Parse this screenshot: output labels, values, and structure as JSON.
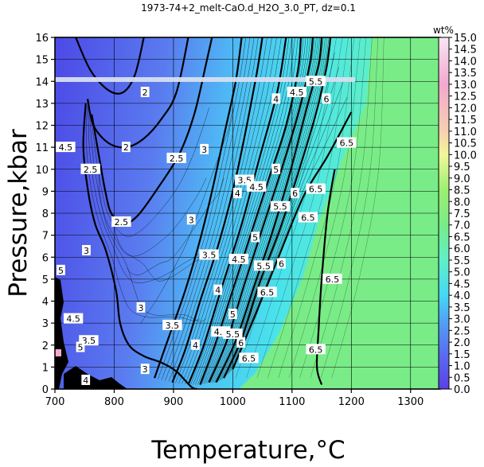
{
  "chart_data": {
    "type": "contour",
    "title": "1973-74+2_melt-CaO.d_H2O_3.0_PT, dz=0.1",
    "xlabel": "Temperature,°C",
    "ylabel": "Pressure,kbar",
    "xlim": [
      700,
      1350
    ],
    "ylim": [
      0,
      16
    ],
    "xticks": [
      700,
      800,
      900,
      1000,
      1100,
      1200,
      1300
    ],
    "yticks": [
      0,
      1,
      2,
      3,
      4,
      5,
      6,
      7,
      8,
      9,
      10,
      11,
      12,
      13,
      14,
      15,
      16
    ],
    "grid": true,
    "colorbar": {
      "label": "wt%",
      "range": [
        0,
        15
      ],
      "ticks": [
        "0.0",
        "0.5",
        "1.0",
        "1.5",
        "2.0",
        "2.5",
        "3.0",
        "3.5",
        "4.0",
        "4.5",
        "5.0",
        "5.5",
        "6.0",
        "6.5",
        "7.0",
        "7.5",
        "8.0",
        "8.5",
        "9.0",
        "9.5",
        "10.0",
        "10.5",
        "11.0",
        "11.5",
        "12.0",
        "12.5",
        "13.0",
        "13.5",
        "14.0",
        "14.5",
        "15.0"
      ],
      "colors": [
        [
          0,
          "#5b3fe6"
        ],
        [
          1.5,
          "#5a6cf0"
        ],
        [
          3,
          "#4fa6f6"
        ],
        [
          4,
          "#46d8f4"
        ],
        [
          5.5,
          "#5ff0c8"
        ],
        [
          7,
          "#79ec88"
        ],
        [
          8.5,
          "#9cef72"
        ],
        [
          10,
          "#f2f79a"
        ],
        [
          11,
          "#f6d0b0"
        ],
        [
          13,
          "#f2a8cf"
        ],
        [
          15,
          "#f7e6f4"
        ]
      ]
    },
    "isolines": [
      {
        "value": "2",
        "points": [
          [
            735,
            16
          ],
          [
            760,
            14.5
          ],
          [
            790,
            13.6
          ],
          [
            815,
            13.5
          ],
          [
            835,
            14.3
          ],
          [
            850,
            16
          ]
        ]
      },
      {
        "value": "2",
        "points": [
          [
            755,
            13.2
          ],
          [
            765,
            12
          ],
          [
            790,
            11.2
          ],
          [
            820,
            11
          ],
          [
            850,
            11.4
          ],
          [
            880,
            12.3
          ],
          [
            905,
            13.5
          ],
          [
            925,
            16
          ]
        ]
      },
      {
        "value": "2.5",
        "points": [
          [
            762,
            12.5
          ],
          [
            775,
            10.5
          ],
          [
            785,
            9
          ],
          [
            795,
            8
          ],
          [
            815,
            7.5
          ],
          [
            840,
            7.9
          ],
          [
            875,
            9.2
          ],
          [
            910,
            10.7
          ],
          [
            935,
            12.5
          ],
          [
            955,
            14.8
          ],
          [
            965,
            16
          ]
        ]
      },
      {
        "value": "3",
        "points": [
          [
            752,
            13
          ],
          [
            748,
            11
          ],
          [
            756,
            9
          ],
          [
            768,
            7.5
          ],
          [
            786,
            6.3
          ],
          [
            803,
            4.5
          ],
          [
            810,
            3
          ],
          [
            825,
            2
          ],
          [
            850,
            1.5
          ],
          [
            880,
            1.2
          ],
          [
            905,
            0.8
          ],
          [
            930,
            0.1
          ],
          [
            940,
            0
          ]
        ]
      },
      {
        "value": "3",
        "points": [
          [
            868,
            0.5
          ],
          [
            890,
            2.2
          ],
          [
            920,
            4.5
          ],
          [
            945,
            6.8
          ],
          [
            965,
            9
          ],
          [
            985,
            11.5
          ],
          [
            1005,
            14
          ],
          [
            1015,
            16
          ]
        ]
      },
      {
        "value": "3.5",
        "points": [
          [
            898,
            0.3
          ],
          [
            920,
            1.8
          ],
          [
            945,
            4
          ],
          [
            975,
            6.5
          ],
          [
            1000,
            9
          ],
          [
            1020,
            11.5
          ],
          [
            1040,
            14.3
          ],
          [
            1050,
            16
          ]
        ]
      },
      {
        "value": "4",
        "points": [
          [
            925,
            0.2
          ],
          [
            950,
            1.9
          ],
          [
            980,
            4.5
          ],
          [
            1015,
            7.5
          ],
          [
            1045,
            10.5
          ],
          [
            1075,
            13.5
          ],
          [
            1090,
            16
          ]
        ]
      },
      {
        "value": "4.5",
        "points": [
          [
            945,
            0.2
          ],
          [
            970,
            2
          ],
          [
            1000,
            4.5
          ],
          [
            1030,
            7
          ],
          [
            1060,
            9.5
          ],
          [
            1090,
            12
          ],
          [
            1110,
            14.5
          ],
          [
            1115,
            16
          ]
        ]
      },
      {
        "value": "5",
        "points": [
          [
            960,
            0.3
          ],
          [
            990,
            2.2
          ],
          [
            1020,
            4.8
          ],
          [
            1050,
            7.3
          ],
          [
            1080,
            9.8
          ],
          [
            1110,
            12.5
          ],
          [
            1130,
            14.8
          ],
          [
            1135,
            16
          ]
        ]
      },
      {
        "value": "5.5",
        "points": [
          [
            972,
            0.3
          ],
          [
            1005,
            2.2
          ],
          [
            1035,
            4.6
          ],
          [
            1065,
            7
          ],
          [
            1095,
            9.7
          ],
          [
            1125,
            12.8
          ],
          [
            1145,
            14.8
          ],
          [
            1150,
            16
          ]
        ]
      },
      {
        "value": "6",
        "points": [
          [
            985,
            0.5
          ],
          [
            1015,
            2.3
          ],
          [
            1045,
            4.8
          ],
          [
            1080,
            7.3
          ],
          [
            1110,
            9.8
          ],
          [
            1140,
            12.5
          ],
          [
            1158,
            14.6
          ],
          [
            1165,
            16
          ]
        ]
      },
      {
        "value": "6.5",
        "points": [
          [
            1000,
            0.9
          ],
          [
            1040,
            3.5
          ],
          [
            1080,
            6.2
          ],
          [
            1120,
            8.8
          ],
          [
            1160,
            10.6
          ],
          [
            1200,
            12.6
          ]
        ]
      },
      {
        "value": "6.5",
        "points": [
          [
            1150,
            0.2
          ],
          [
            1142,
            1
          ],
          [
            1145,
            2.8
          ],
          [
            1150,
            5
          ],
          [
            1160,
            8
          ],
          [
            1172,
            10
          ]
        ]
      }
    ],
    "contour_labels": [
      {
        "text": "2",
        "x": 820,
        "y": 11
      },
      {
        "text": "2",
        "x": 852,
        "y": 13.5
      },
      {
        "text": "2.5",
        "x": 905,
        "y": 10.5
      },
      {
        "text": "2.5",
        "x": 760,
        "y": 10
      },
      {
        "text": "2.5",
        "x": 812,
        "y": 7.6
      },
      {
        "text": "3",
        "x": 952,
        "y": 10.9
      },
      {
        "text": "3",
        "x": 930,
        "y": 7.7
      },
      {
        "text": "3",
        "x": 845,
        "y": 3.7
      },
      {
        "text": "3",
        "x": 753,
        "y": 6.3
      },
      {
        "text": "3",
        "x": 852,
        "y": 0.9
      },
      {
        "text": "3.5",
        "x": 1020,
        "y": 9.5
      },
      {
        "text": "3.5",
        "x": 960,
        "y": 6.1
      },
      {
        "text": "3.5",
        "x": 898,
        "y": 2.9
      },
      {
        "text": "3.5",
        "x": 757,
        "y": 2.2
      },
      {
        "text": "4",
        "x": 1073,
        "y": 13.2
      },
      {
        "text": "4",
        "x": 1008,
        "y": 8.9
      },
      {
        "text": "4",
        "x": 975,
        "y": 4.5
      },
      {
        "text": "4",
        "x": 937,
        "y": 2
      },
      {
        "text": "4",
        "x": 752,
        "y": 0.4
      },
      {
        "text": "4.5",
        "x": 1108,
        "y": 13.5
      },
      {
        "text": "4.5",
        "x": 1040,
        "y": 9.2
      },
      {
        "text": "4.5",
        "x": 1010,
        "y": 5.9
      },
      {
        "text": "4.5",
        "x": 980,
        "y": 2.6
      },
      {
        "text": "4.5",
        "x": 731,
        "y": 3.2
      },
      {
        "text": "4.5",
        "x": 718,
        "y": 11
      },
      {
        "text": "5",
        "x": 1073,
        "y": 10
      },
      {
        "text": "5",
        "x": 1038,
        "y": 6.9
      },
      {
        "text": "5",
        "x": 1000,
        "y": 3.4
      },
      {
        "text": "5",
        "x": 710,
        "y": 5.4
      },
      {
        "text": "5",
        "x": 743,
        "y": 1.9
      },
      {
        "text": "5.5",
        "x": 1140,
        "y": 14
      },
      {
        "text": "5.5",
        "x": 1080,
        "y": 8.3
      },
      {
        "text": "5.5",
        "x": 1052,
        "y": 5.6
      },
      {
        "text": "5.5",
        "x": 1000,
        "y": 2.5
      },
      {
        "text": "6",
        "x": 1158,
        "y": 13.2
      },
      {
        "text": "6",
        "x": 1105,
        "y": 8.9
      },
      {
        "text": "6",
        "x": 1082,
        "y": 5.7
      },
      {
        "text": "6",
        "x": 1014,
        "y": 2.1
      },
      {
        "text": "6.5",
        "x": 1192,
        "y": 11.2
      },
      {
        "text": "6.5",
        "x": 1140,
        "y": 9.1
      },
      {
        "text": "6.5",
        "x": 1127,
        "y": 7.8
      },
      {
        "text": "6.5",
        "x": 1058,
        "y": 4.4
      },
      {
        "text": "6.5",
        "x": 1027,
        "y": 1.4
      },
      {
        "text": "6.5",
        "x": 1168,
        "y": 5
      },
      {
        "text": "6.5",
        "x": 1140,
        "y": 1.8
      }
    ]
  }
}
